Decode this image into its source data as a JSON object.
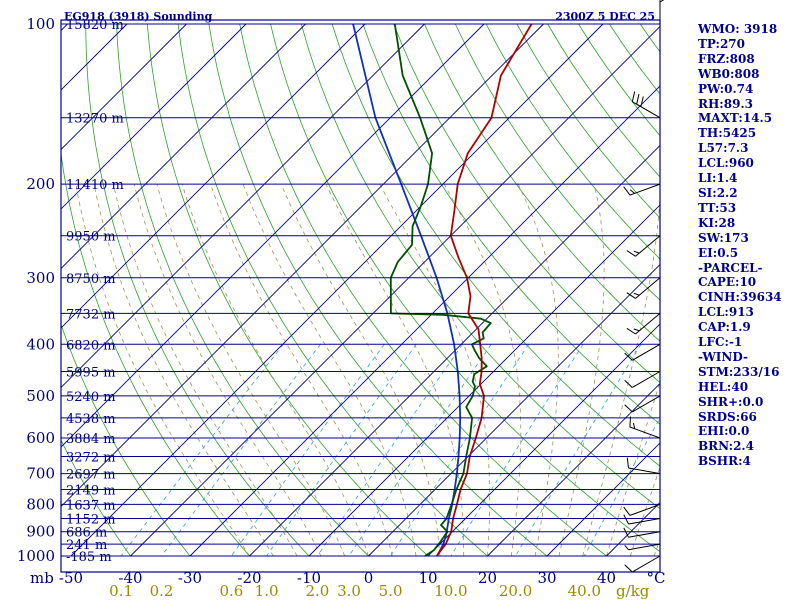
{
  "title_left": "EG918 (3918) Sounding",
  "title_right": "2300Z  5 DEC 25",
  "corner_label": "mb",
  "units_label": "g/kg",
  "deg_label": "°C",
  "colors": {
    "frame": "#00008b",
    "isobar": "#00008b",
    "isotherm": "#00008b",
    "dry_adiabat": "#30a030",
    "moist_adiabat": "#a09060",
    "mixing_ratio": "#30a0d0",
    "temperature": "#b00000",
    "dewpoint": "#005000",
    "parcel": "#1030c0",
    "wind": "#000000"
  },
  "indices": [
    "WMO: 3918",
    "TP:270",
    "FRZ:808",
    "WB0:808",
    "PW:0.74",
    "RH:89.3",
    "MAXT:14.5",
    "TH:5425",
    "L57:7.3",
    "LCL:960",
    "LI:1.4",
    "SI:2.2",
    "TT:53",
    "KI:28",
    "SW:173",
    "EI:0.5",
    "-PARCEL-",
    "CAPE:10",
    "CINH:39634",
    "LCL:913",
    "CAP:1.9",
    "LFC:-1",
    "-WIND-",
    "STM:233/16",
    "HEL:40",
    "SHR+:0.0",
    "SRDS:66",
    "EHI:0.0",
    "BRN:2.4",
    "BSHR:4"
  ],
  "chart_data": {
    "type": "skew-t",
    "title": "EG918 (3918) Sounding",
    "pressure_axis": {
      "ticks": [
        100,
        200,
        300,
        400,
        500,
        600,
        700,
        800,
        900,
        1000
      ],
      "tick_labels": [
        "100",
        "200",
        "300",
        "400",
        "500",
        "600",
        "700",
        "800",
        "900",
        "1000"
      ],
      "range": [
        1000,
        100
      ]
    },
    "temperature_axis": {
      "ticks": [
        -50,
        -40,
        -30,
        -20,
        -10,
        0,
        10,
        20,
        30,
        40
      ],
      "tick_labels": [
        "-50",
        "-40",
        "-30",
        "-20",
        "-10",
        "0",
        "10",
        "20",
        "30",
        "40"
      ],
      "unit": "°C"
    },
    "mixing_ratio_ticks": {
      "values": [
        0.1,
        0.2,
        0.6,
        1.0,
        2.0,
        3.0,
        5.0,
        10.0,
        20.0,
        40.0
      ],
      "labels": [
        "0.1",
        "0.2",
        "0.6",
        "1.0",
        "2.0",
        "3.0",
        "5.0",
        "10.0",
        "20.0",
        "40.0"
      ],
      "unit": "g/kg"
    },
    "height_labels": [
      {
        "p": 100,
        "label": "15820 m"
      },
      {
        "p": 150,
        "label": "13270 m"
      },
      {
        "p": 200,
        "label": "11410 m"
      },
      {
        "p": 250,
        "label": "9950 m"
      },
      {
        "p": 300,
        "label": "8750 m"
      },
      {
        "p": 350,
        "label": "7732 m"
      },
      {
        "p": 400,
        "label": "6820 m"
      },
      {
        "p": 450,
        "label": "5995 m"
      },
      {
        "p": 500,
        "label": "5240 m"
      },
      {
        "p": 550,
        "label": "4538 m"
      },
      {
        "p": 600,
        "label": "3884 m"
      },
      {
        "p": 650,
        "label": "3272 m"
      },
      {
        "p": 700,
        "label": "2697 m"
      },
      {
        "p": 750,
        "label": "2149 m"
      },
      {
        "p": 800,
        "label": "1637 m"
      },
      {
        "p": 850,
        "label": "1152 m"
      },
      {
        "p": 900,
        "label": "686 m"
      },
      {
        "p": 950,
        "label": "241 m"
      },
      {
        "p": 1000,
        "label": "-185 m"
      }
    ],
    "temperature_profile": [
      [
        1000,
        11.5
      ],
      [
        975,
        11.2
      ],
      [
        950,
        11.0
      ],
      [
        925,
        10.4
      ],
      [
        900,
        9.8
      ],
      [
        850,
        7.9
      ],
      [
        800,
        6.2
      ],
      [
        750,
        4.3
      ],
      [
        700,
        2.7
      ],
      [
        650,
        0.3
      ],
      [
        600,
        -1.8
      ],
      [
        550,
        -4.2
      ],
      [
        500,
        -7.5
      ],
      [
        475,
        -10.2
      ],
      [
        450,
        -12.0
      ],
      [
        425,
        -14.2
      ],
      [
        400,
        -16.8
      ],
      [
        375,
        -19.6
      ],
      [
        350,
        -24.0
      ],
      [
        325,
        -26.5
      ],
      [
        300,
        -30.2
      ],
      [
        275,
        -35.0
      ],
      [
        250,
        -40.0
      ],
      [
        225,
        -43.5
      ],
      [
        200,
        -47.5
      ],
      [
        175,
        -51.0
      ],
      [
        150,
        -53.0
      ],
      [
        125,
        -58.5
      ],
      [
        100,
        -62.0
      ]
    ],
    "dewpoint_profile": [
      [
        1000,
        9.5
      ],
      [
        975,
        10.0
      ],
      [
        950,
        9.8
      ],
      [
        925,
        9.5
      ],
      [
        900,
        9.2
      ],
      [
        875,
        7.0
      ],
      [
        850,
        6.8
      ],
      [
        800,
        5.3
      ],
      [
        750,
        3.6
      ],
      [
        700,
        2.1
      ],
      [
        650,
        -0.3
      ],
      [
        600,
        -2.8
      ],
      [
        550,
        -5.8
      ],
      [
        525,
        -8.6
      ],
      [
        500,
        -9.4
      ],
      [
        480,
        -10.6
      ],
      [
        470,
        -11.8
      ],
      [
        455,
        -12.8
      ],
      [
        440,
        -12.0
      ],
      [
        425,
        -14.6
      ],
      [
        410,
        -16.8
      ],
      [
        400,
        -18.2
      ],
      [
        390,
        -17.2
      ],
      [
        380,
        -18.4
      ],
      [
        365,
        -18.6
      ],
      [
        358,
        -21.0
      ],
      [
        355,
        -24.5
      ],
      [
        352,
        -28.0
      ],
      [
        350,
        -37.0
      ],
      [
        300,
        -43.0
      ],
      [
        280,
        -44.5
      ],
      [
        260,
        -45.0
      ],
      [
        240,
        -48.0
      ],
      [
        220,
        -50.0
      ],
      [
        200,
        -52.5
      ],
      [
        175,
        -57.0
      ],
      [
        150,
        -65.0
      ],
      [
        125,
        -75.0
      ],
      [
        100,
        -85.0
      ]
    ],
    "parcel_profile": [
      [
        1000,
        11.5
      ],
      [
        950,
        10.6
      ],
      [
        913,
        9.5
      ],
      [
        850,
        7.2
      ],
      [
        800,
        5.4
      ],
      [
        750,
        3.3
      ],
      [
        700,
        1.0
      ],
      [
        650,
        -1.6
      ],
      [
        600,
        -4.5
      ],
      [
        550,
        -7.8
      ],
      [
        500,
        -11.6
      ],
      [
        450,
        -16.0
      ],
      [
        400,
        -21.2
      ],
      [
        350,
        -27.5
      ],
      [
        300,
        -35.3
      ],
      [
        250,
        -45.0
      ],
      [
        200,
        -57.0
      ],
      [
        150,
        -72.5
      ],
      [
        100,
        -92.0
      ]
    ],
    "wind_barbs": [
      {
        "p": 100,
        "dir": 0,
        "speed_kt": 25
      },
      {
        "p": 150,
        "dir": 300,
        "speed_kt": 30
      },
      {
        "p": 200,
        "dir": 250,
        "speed_kt": 15
      },
      {
        "p": 250,
        "dir": 230,
        "speed_kt": 15
      },
      {
        "p": 300,
        "dir": 230,
        "speed_kt": 15
      },
      {
        "p": 350,
        "dir": 230,
        "speed_kt": 15
      },
      {
        "p": 400,
        "dir": 240,
        "speed_kt": 10
      },
      {
        "p": 450,
        "dir": 240,
        "speed_kt": 10
      },
      {
        "p": 500,
        "dir": 240,
        "speed_kt": 10
      },
      {
        "p": 600,
        "dir": 290,
        "speed_kt": 15
      },
      {
        "p": 700,
        "dir": 280,
        "speed_kt": 10
      },
      {
        "p": 800,
        "dir": 250,
        "speed_kt": 10
      },
      {
        "p": 850,
        "dir": 260,
        "speed_kt": 10
      },
      {
        "p": 900,
        "dir": 260,
        "speed_kt": 10
      },
      {
        "p": 950,
        "dir": 260,
        "speed_kt": 5
      },
      {
        "p": 1000,
        "dir": 240,
        "speed_kt": 10
      }
    ]
  }
}
